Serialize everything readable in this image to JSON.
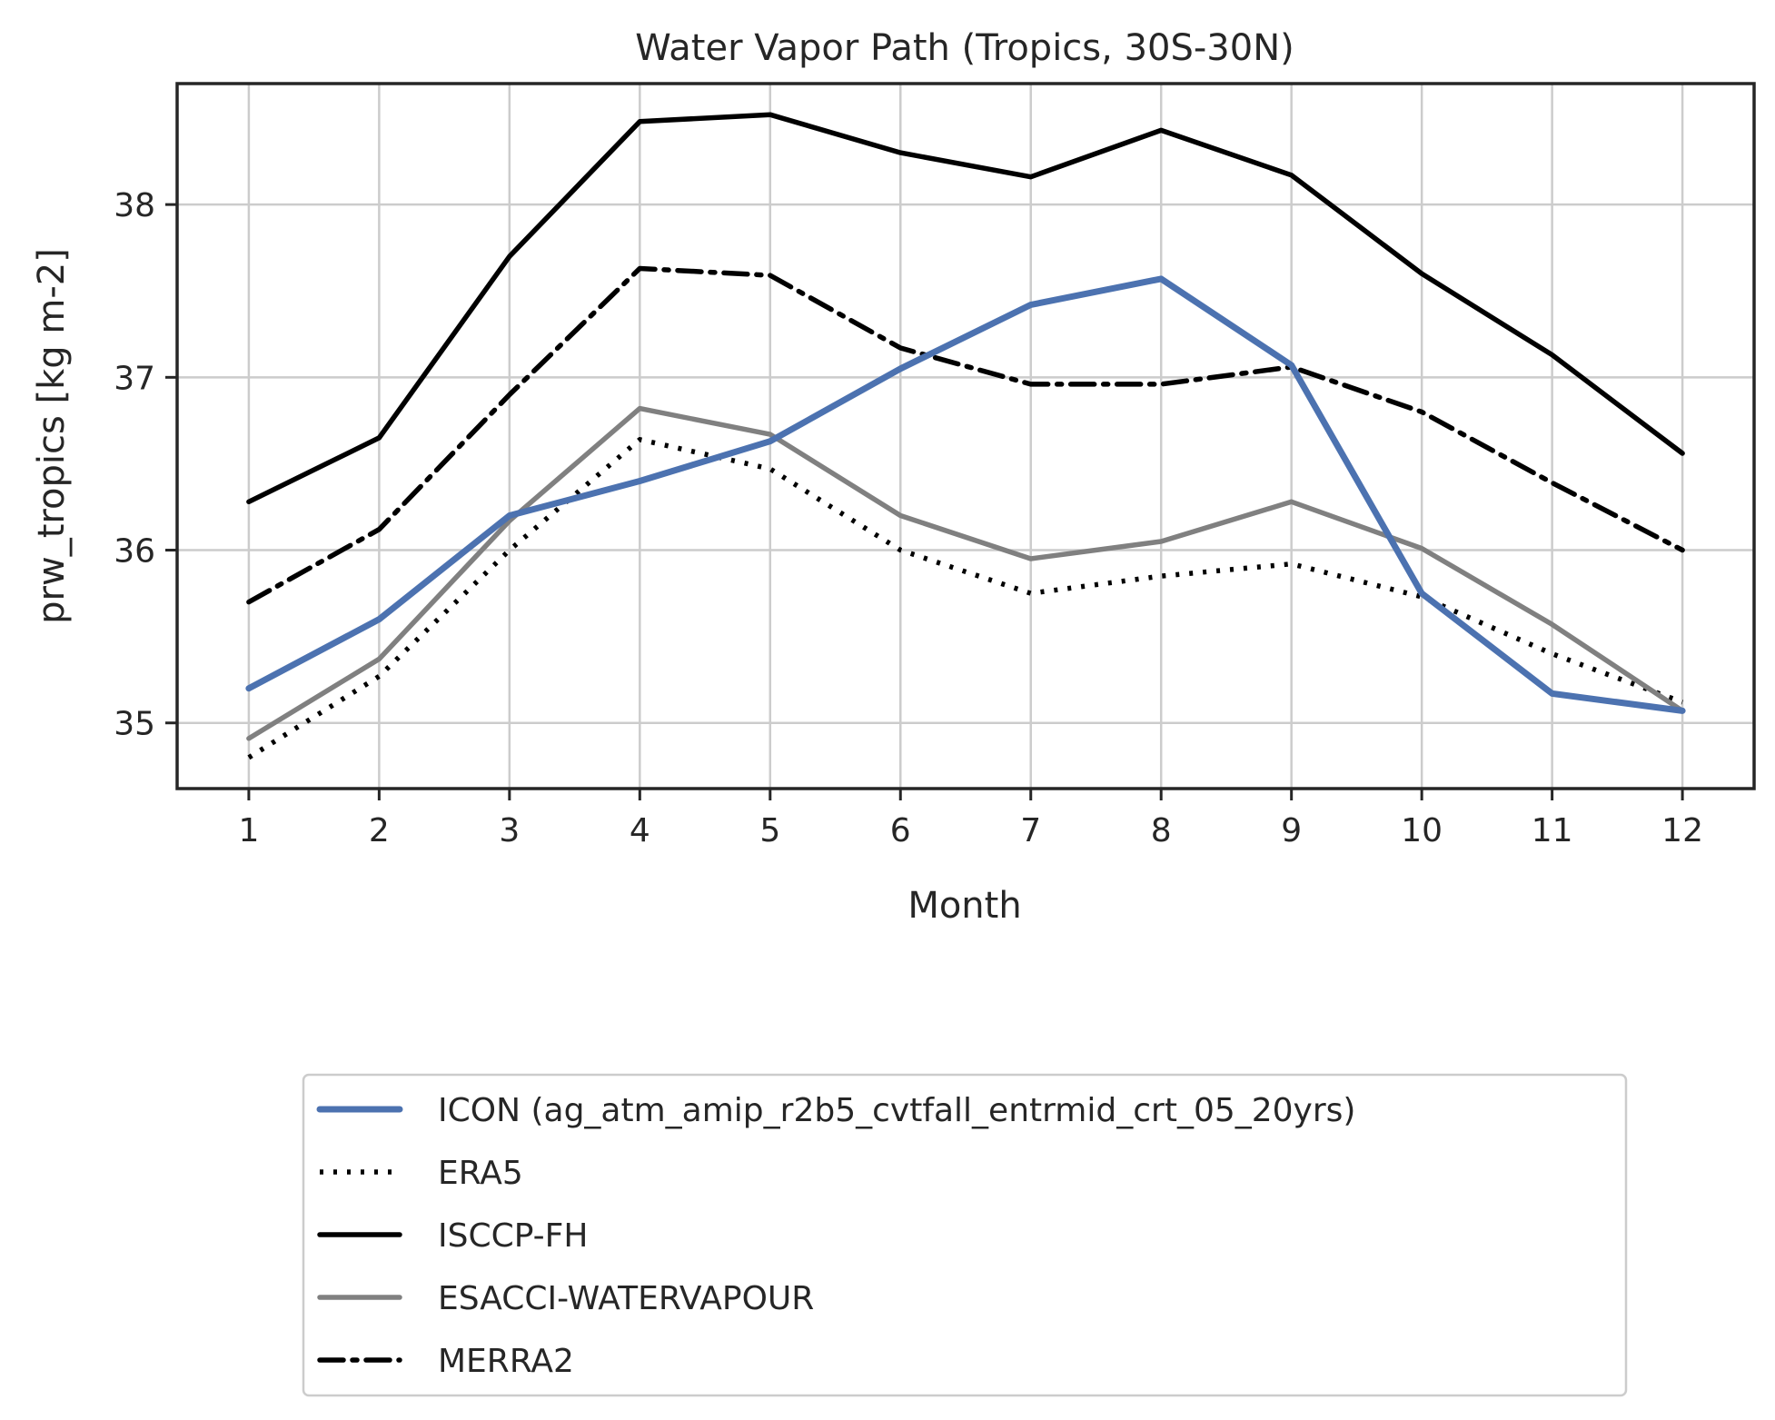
{
  "chart_data": {
    "type": "line",
    "title": "Water Vapor Path (Tropics, 30S-30N)",
    "xlabel": "Month",
    "ylabel": "prw_tropics [kg m-2]",
    "x": [
      1,
      2,
      3,
      4,
      5,
      6,
      7,
      8,
      9,
      10,
      11,
      12
    ],
    "xlim": [
      0.45,
      12.55
    ],
    "ylim": [
      34.62,
      38.7
    ],
    "x_ticks": [
      "1",
      "2",
      "3",
      "4",
      "5",
      "6",
      "7",
      "8",
      "9",
      "10",
      "11",
      "12"
    ],
    "y_ticks": [
      35,
      36,
      37,
      38
    ],
    "y_tick_labels": [
      "35",
      "36",
      "37",
      "38"
    ],
    "grid": true,
    "legend_position": "below",
    "series": [
      {
        "name": "ICON (ag_atm_amip_r2b5_cvtfall_entrmid_crt_05_20yrs)",
        "style": "solid",
        "color": "#4c72b0",
        "values": [
          35.2,
          35.6,
          36.2,
          36.4,
          36.63,
          37.05,
          37.42,
          37.57,
          37.07,
          35.75,
          35.17,
          35.07
        ]
      },
      {
        "name": "ERA5",
        "style": "dotted",
        "color": "#000000",
        "values": [
          34.8,
          35.27,
          36.0,
          36.64,
          36.47,
          36.0,
          35.75,
          35.85,
          35.92,
          35.73,
          35.4,
          35.12
        ]
      },
      {
        "name": "ISCCP-FH",
        "style": "solid",
        "color": "#000000",
        "values": [
          36.28,
          36.65,
          37.7,
          38.48,
          38.52,
          38.3,
          38.16,
          38.43,
          38.17,
          37.6,
          37.13,
          36.56
        ]
      },
      {
        "name": "ESACCI-WATERVAPOUR",
        "style": "solid",
        "color": "#808080",
        "values": [
          34.91,
          35.37,
          36.17,
          36.82,
          36.67,
          36.2,
          35.95,
          36.05,
          36.28,
          36.01,
          35.57,
          35.07
        ]
      },
      {
        "name": "MERRA2",
        "style": "dashdot",
        "color": "#000000",
        "values": [
          35.7,
          36.12,
          36.9,
          37.63,
          37.59,
          37.17,
          36.96,
          36.96,
          37.06,
          36.8,
          36.39,
          36.0
        ]
      }
    ]
  }
}
